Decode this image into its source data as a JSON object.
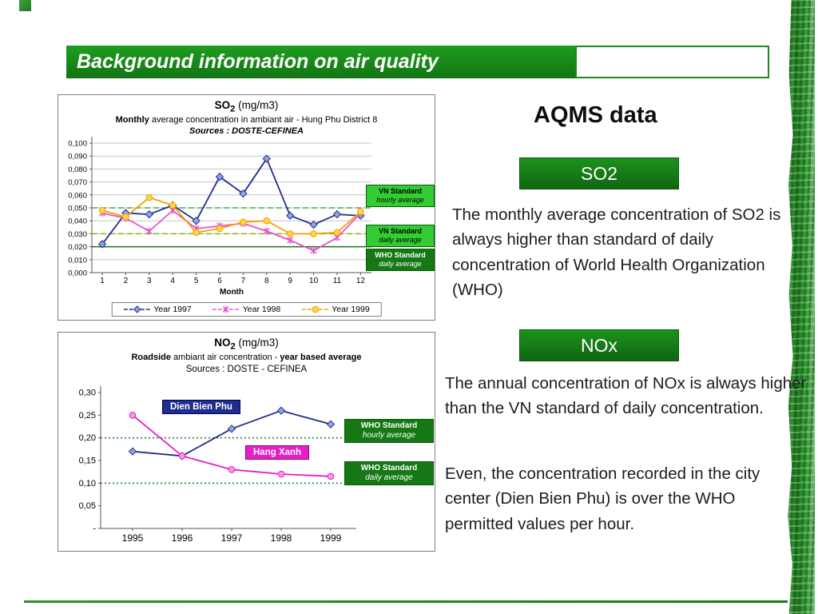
{
  "header": {
    "title": "Background information on air quality"
  },
  "right_column": {
    "aqms_title": "AQMS data",
    "so2_badge": "SO2",
    "nox_badge": "NOx",
    "so2_paragraph": "The monthly average concentration of SO2 is always higher than standard of daily concentration of World Health Organization (WHO)",
    "nox_paragraph_1": "The annual concentration of NOx is always higher than the VN standard of daily concentration.",
    "nox_paragraph_2": "Even, the concentration recorded in the city center (Dien Bien Phu) is over the WHO permitted values per hour."
  },
  "colors": {
    "slide_green": "#179417",
    "badge_green": "#157815",
    "bright_green": "#33cc33",
    "navy_series": "#1f2e8c",
    "magenta_series": "#e61ec8",
    "orange_series": "#f2a200"
  },
  "chart_data": [
    {
      "type": "line",
      "title": {
        "prefix": "SO",
        "sub": "2",
        "rest": " (mg/m3)"
      },
      "subtitle_segments": [
        {
          "t": "Monthly",
          "b": true
        },
        {
          "t": " average concentration in ambiant air - Hung Phu District 8",
          "b": false
        }
      ],
      "sources": "Sources : DOSTE-CEFINEA",
      "xlabel": "Month",
      "categories": [
        "1",
        "2",
        "3",
        "4",
        "5",
        "6",
        "7",
        "8",
        "9",
        "10",
        "11",
        "12"
      ],
      "ylim": [
        0,
        0.1
      ],
      "grid": true,
      "legend_position": "bottom",
      "yticks": [
        {
          "v": 0.0,
          "label": "0,000"
        },
        {
          "v": 0.01,
          "label": "0,010"
        },
        {
          "v": 0.02,
          "label": "0,020"
        },
        {
          "v": 0.03,
          "label": "0,030"
        },
        {
          "v": 0.04,
          "label": "0,040"
        },
        {
          "v": 0.05,
          "label": "0,050"
        },
        {
          "v": 0.06,
          "label": "0,060"
        },
        {
          "v": 0.07,
          "label": "0,070"
        },
        {
          "v": 0.08,
          "label": "0,080"
        },
        {
          "v": 0.09,
          "label": "0,090"
        },
        {
          "v": 0.1,
          "label": "0,100"
        }
      ],
      "series": [
        {
          "name": "Year 1997",
          "color": "#1f2e8c",
          "marker": "diamond",
          "marker_fill": "#8ea6e0",
          "values": [
            0.022,
            0.046,
            0.045,
            0.052,
            0.04,
            0.074,
            0.061,
            0.088,
            0.044,
            0.037,
            0.045,
            0.044
          ]
        },
        {
          "name": "Year 1998",
          "color": "#e655c8",
          "marker": "x",
          "marker_fill": "#e655c8",
          "values": [
            0.046,
            0.042,
            0.032,
            0.048,
            0.034,
            0.036,
            0.038,
            0.032,
            0.025,
            0.017,
            0.027,
            0.046
          ]
        },
        {
          "name": "Year 1999",
          "color": "#f2a200",
          "marker": "circle",
          "marker_fill": "#ffd34d",
          "values": [
            0.048,
            0.043,
            0.058,
            0.052,
            0.031,
            0.034,
            0.039,
            0.04,
            0.03,
            0.03,
            0.031,
            0.047
          ]
        }
      ],
      "standards": [
        {
          "line1": "VN Standard",
          "line2": "hourly average",
          "value": 0.05,
          "line_color": "#3faf46",
          "style": "dashed",
          "box": "bright"
        },
        {
          "line1": "VN Standard",
          "line2": "daily average",
          "value": 0.03,
          "line_color": "#8db600",
          "style": "dashed",
          "box": "bright"
        },
        {
          "line1": "WHO Standard",
          "line2": "daily average",
          "value": 0.02,
          "line_color": "#157815",
          "style": "solid",
          "box": "dark"
        }
      ]
    },
    {
      "type": "line",
      "title": {
        "prefix": "NO",
        "sub": "2",
        "rest": " (mg/m3)"
      },
      "subtitle_segments": [
        {
          "t": "Roadside",
          "b": true
        },
        {
          "t": " ambiant air concentration - ",
          "b": false
        },
        {
          "t": "year based average",
          "b": true
        }
      ],
      "sources": "Sources : DOSTE - CEFINEA",
      "xlabel": "",
      "categories": [
        "1995",
        "1996",
        "1997",
        "1998",
        "1999"
      ],
      "ylim": [
        0,
        0.3
      ],
      "grid": false,
      "legend_position": "none",
      "yticks": [
        {
          "v": 0.0,
          "label": "-"
        },
        {
          "v": 0.05,
          "label": "0,05"
        },
        {
          "v": 0.1,
          "label": "0,10"
        },
        {
          "v": 0.15,
          "label": "0,15"
        },
        {
          "v": 0.2,
          "label": "0,20"
        },
        {
          "v": 0.25,
          "label": "0,25"
        },
        {
          "v": 0.3,
          "label": "0,30"
        }
      ],
      "series": [
        {
          "name": "Dien Bien Phu",
          "color": "#1f2e8c",
          "marker": "diamond",
          "marker_fill": "#8ea6e0",
          "values": [
            0.17,
            0.16,
            0.22,
            0.26,
            0.23
          ]
        },
        {
          "name": "Hang Xanh",
          "color": "#e61ec8",
          "marker": "circle",
          "marker_fill": "#f49ae0",
          "values": [
            0.25,
            0.16,
            0.13,
            0.12,
            0.115
          ]
        }
      ],
      "standards": [
        {
          "line1": "WHO Standard",
          "line2": "hourly average",
          "value": 0.2,
          "line_color": "#157815",
          "style": "dotted",
          "box": "dark"
        },
        {
          "line1": "WHO Standard",
          "line2": "daily average",
          "value": 0.1,
          "line_color": "#157815",
          "style": "dotted",
          "box": "dark"
        }
      ]
    }
  ]
}
